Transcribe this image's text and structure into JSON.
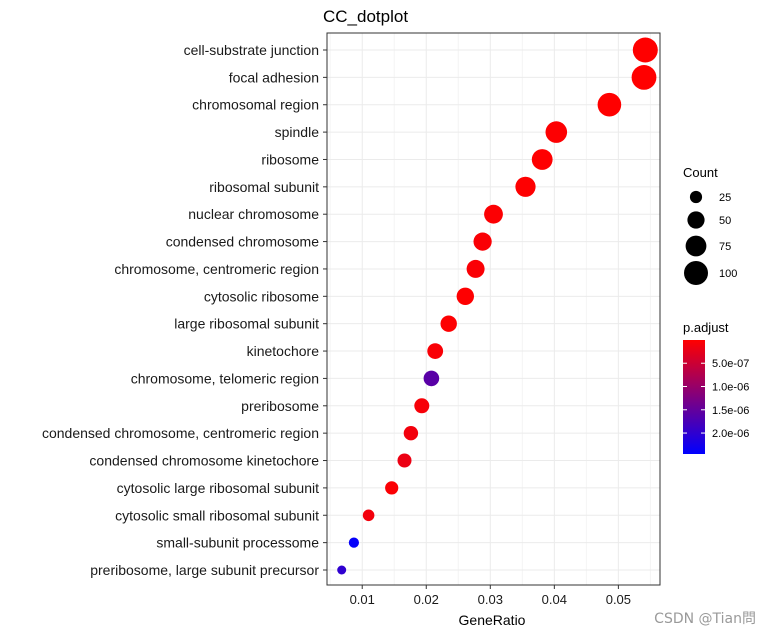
{
  "chart_data": {
    "type": "scatter",
    "title": "CC_dotplot",
    "xlabel": "GeneRatio",
    "ylabel": "",
    "xlim": [
      0.0045,
      0.0565
    ],
    "x_ticks": [
      0.01,
      0.02,
      0.03,
      0.04,
      0.05
    ],
    "x_tick_labels": [
      "0.01",
      "0.02",
      "0.03",
      "0.04",
      "0.05"
    ],
    "grid": true,
    "categories": [
      "cell-substrate junction",
      "focal adhesion",
      "chromosomal region",
      "spindle",
      "ribosome",
      "ribosomal subunit",
      "nuclear chromosome",
      "condensed chromosome",
      "chromosome, centromeric region",
      "cytosolic ribosome",
      "large ribosomal subunit",
      "kinetochore",
      "chromosome, telomeric region",
      "preribosome",
      "condensed chromosome, centromeric region",
      "condensed chromosome kinetochore",
      "cytosolic large ribosomal subunit",
      "cytosolic small ribosomal subunit",
      "small-subunit processome",
      "preribosome, large subunit precursor"
    ],
    "points": [
      {
        "term": "cell-substrate junction",
        "gene_ratio": 0.0542,
        "count": 108,
        "p_adjust": 1e-09
      },
      {
        "term": "focal adhesion",
        "gene_ratio": 0.054,
        "count": 107,
        "p_adjust": 1e-09
      },
      {
        "term": "chromosomal region",
        "gene_ratio": 0.0486,
        "count": 96,
        "p_adjust": 1e-09
      },
      {
        "term": "spindle",
        "gene_ratio": 0.0403,
        "count": 80,
        "p_adjust": 2e-08
      },
      {
        "term": "ribosome",
        "gene_ratio": 0.0381,
        "count": 75,
        "p_adjust": 1e-08
      },
      {
        "term": "ribosomal subunit",
        "gene_ratio": 0.0355,
        "count": 70,
        "p_adjust": 1e-08
      },
      {
        "term": "nuclear chromosome",
        "gene_ratio": 0.0305,
        "count": 60,
        "p_adjust": 3e-08
      },
      {
        "term": "condensed chromosome",
        "gene_ratio": 0.0288,
        "count": 57,
        "p_adjust": 5e-08
      },
      {
        "term": "chromosome, centromeric region",
        "gene_ratio": 0.0277,
        "count": 55,
        "p_adjust": 5e-08
      },
      {
        "term": "cytosolic ribosome",
        "gene_ratio": 0.0261,
        "count": 52,
        "p_adjust": 1e-08
      },
      {
        "term": "large ribosomal subunit",
        "gene_ratio": 0.0235,
        "count": 46,
        "p_adjust": 2e-08
      },
      {
        "term": "kinetochore",
        "gene_ratio": 0.0214,
        "count": 42,
        "p_adjust": 6e-08
      },
      {
        "term": "chromosome, telomeric region",
        "gene_ratio": 0.0208,
        "count": 41,
        "p_adjust": 1.6e-06
      },
      {
        "term": "preribosome",
        "gene_ratio": 0.0193,
        "count": 38,
        "p_adjust": 8e-08
      },
      {
        "term": "condensed chromosome, centromeric region",
        "gene_ratio": 0.0176,
        "count": 35,
        "p_adjust": 1.2e-07
      },
      {
        "term": "condensed chromosome kinetochore",
        "gene_ratio": 0.0166,
        "count": 33,
        "p_adjust": 1.8e-07
      },
      {
        "term": "cytosolic large ribosomal subunit",
        "gene_ratio": 0.0146,
        "count": 29,
        "p_adjust": 4e-08
      },
      {
        "term": "cytosolic small ribosomal subunit",
        "gene_ratio": 0.011,
        "count": 22,
        "p_adjust": 1.2e-07
      },
      {
        "term": "small-subunit processome",
        "gene_ratio": 0.0087,
        "count": 17,
        "p_adjust": 2.4e-06
      },
      {
        "term": "preribosome, large subunit precursor",
        "gene_ratio": 0.0068,
        "count": 13,
        "p_adjust": 2e-06
      }
    ],
    "size_legend": {
      "title": "Count",
      "values": [
        25,
        50,
        75,
        100
      ],
      "labels": [
        "25",
        "50",
        "75",
        "100"
      ]
    },
    "color_legend": {
      "title": "p.adjust",
      "range": [
        1e-09,
        2.45e-06
      ],
      "ticks": [
        5e-07,
        1e-06,
        1.5e-06,
        2e-06
      ],
      "tick_labels": [
        "5.0e-07",
        "1.0e-06",
        "1.5e-06",
        "2.0e-06"
      ],
      "low_color": "#ff0000",
      "high_color": "#0000ff"
    },
    "legend_position": "right"
  },
  "watermark": "CSDN @Tian問"
}
